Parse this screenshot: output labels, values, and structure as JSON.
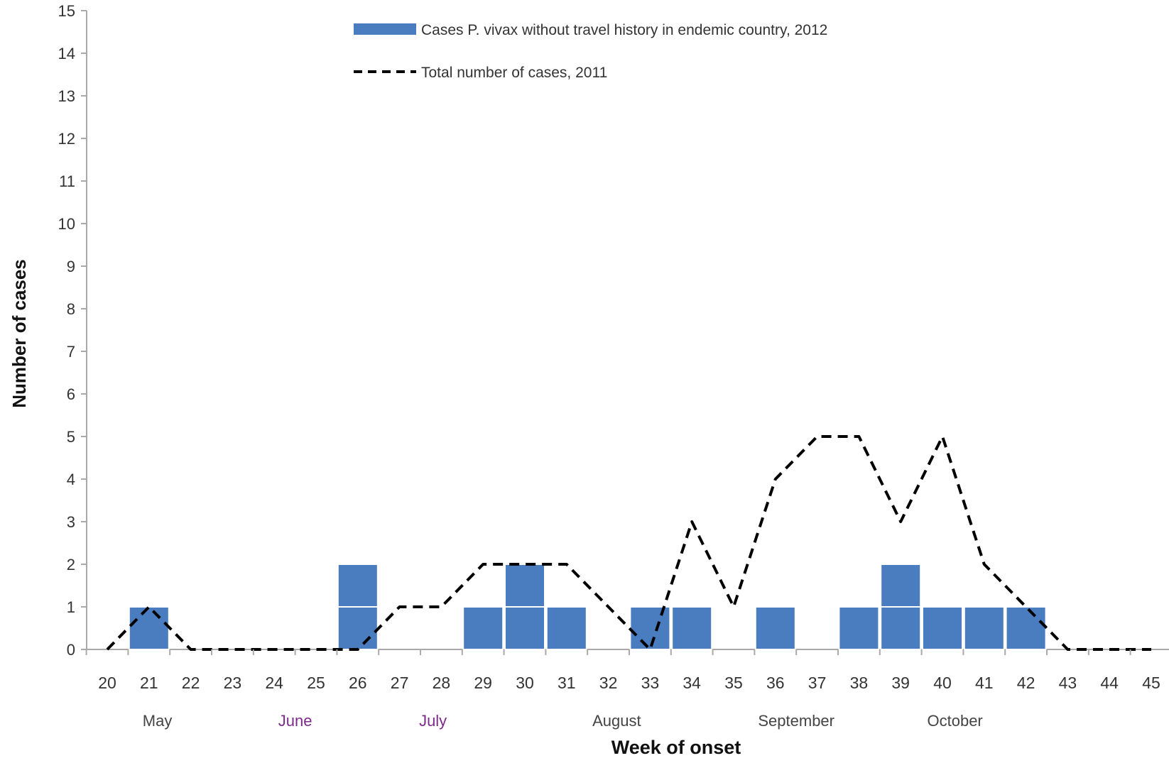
{
  "chart_data": {
    "type": "bar",
    "title": "",
    "xlabel": "Week of onset",
    "ylabel": "Number of cases",
    "ylim": [
      0,
      15
    ],
    "y_ticks": [
      0,
      1,
      2,
      3,
      4,
      5,
      6,
      7,
      8,
      9,
      10,
      11,
      12,
      13,
      14,
      15
    ],
    "grid": false,
    "legend_position": "top",
    "categories": [
      "20",
      "21",
      "22",
      "23",
      "24",
      "25",
      "26",
      "27",
      "28",
      "29",
      "30",
      "31",
      "32",
      "33",
      "34",
      "35",
      "36",
      "37",
      "38",
      "39",
      "40",
      "41",
      "42",
      "43",
      "44",
      "45"
    ],
    "months": [
      {
        "label": "May",
        "week": 21.2,
        "color": "#444444"
      },
      {
        "label": "June",
        "week": 24.5,
        "color": "#7a2a8a"
      },
      {
        "label": "July",
        "week": 27.8,
        "color": "#7a2a8a"
      },
      {
        "label": "August",
        "week": 32.2,
        "color": "#444444"
      },
      {
        "label": "September",
        "week": 36.5,
        "color": "#444444"
      },
      {
        "label": "October",
        "week": 40.3,
        "color": "#444444"
      }
    ],
    "series": [
      {
        "name": "Cases P. vivax without travel history in endemic country,  2012",
        "type": "bar",
        "color": "#4a7cc0",
        "values": [
          0,
          1,
          0,
          0,
          0,
          0,
          2,
          0,
          0,
          1,
          2,
          1,
          0,
          1,
          1,
          0,
          1,
          0,
          1,
          2,
          1,
          1,
          1,
          0,
          0,
          0
        ]
      },
      {
        "name": "Total number of cases, 2011",
        "type": "line",
        "style": "dashed",
        "color": "#000000",
        "values": [
          0,
          1,
          0,
          0,
          0,
          0,
          0,
          1,
          1,
          2,
          2,
          2,
          1,
          0,
          3,
          1,
          4,
          5,
          5,
          3,
          5,
          2,
          1,
          0,
          0,
          0
        ]
      }
    ]
  }
}
